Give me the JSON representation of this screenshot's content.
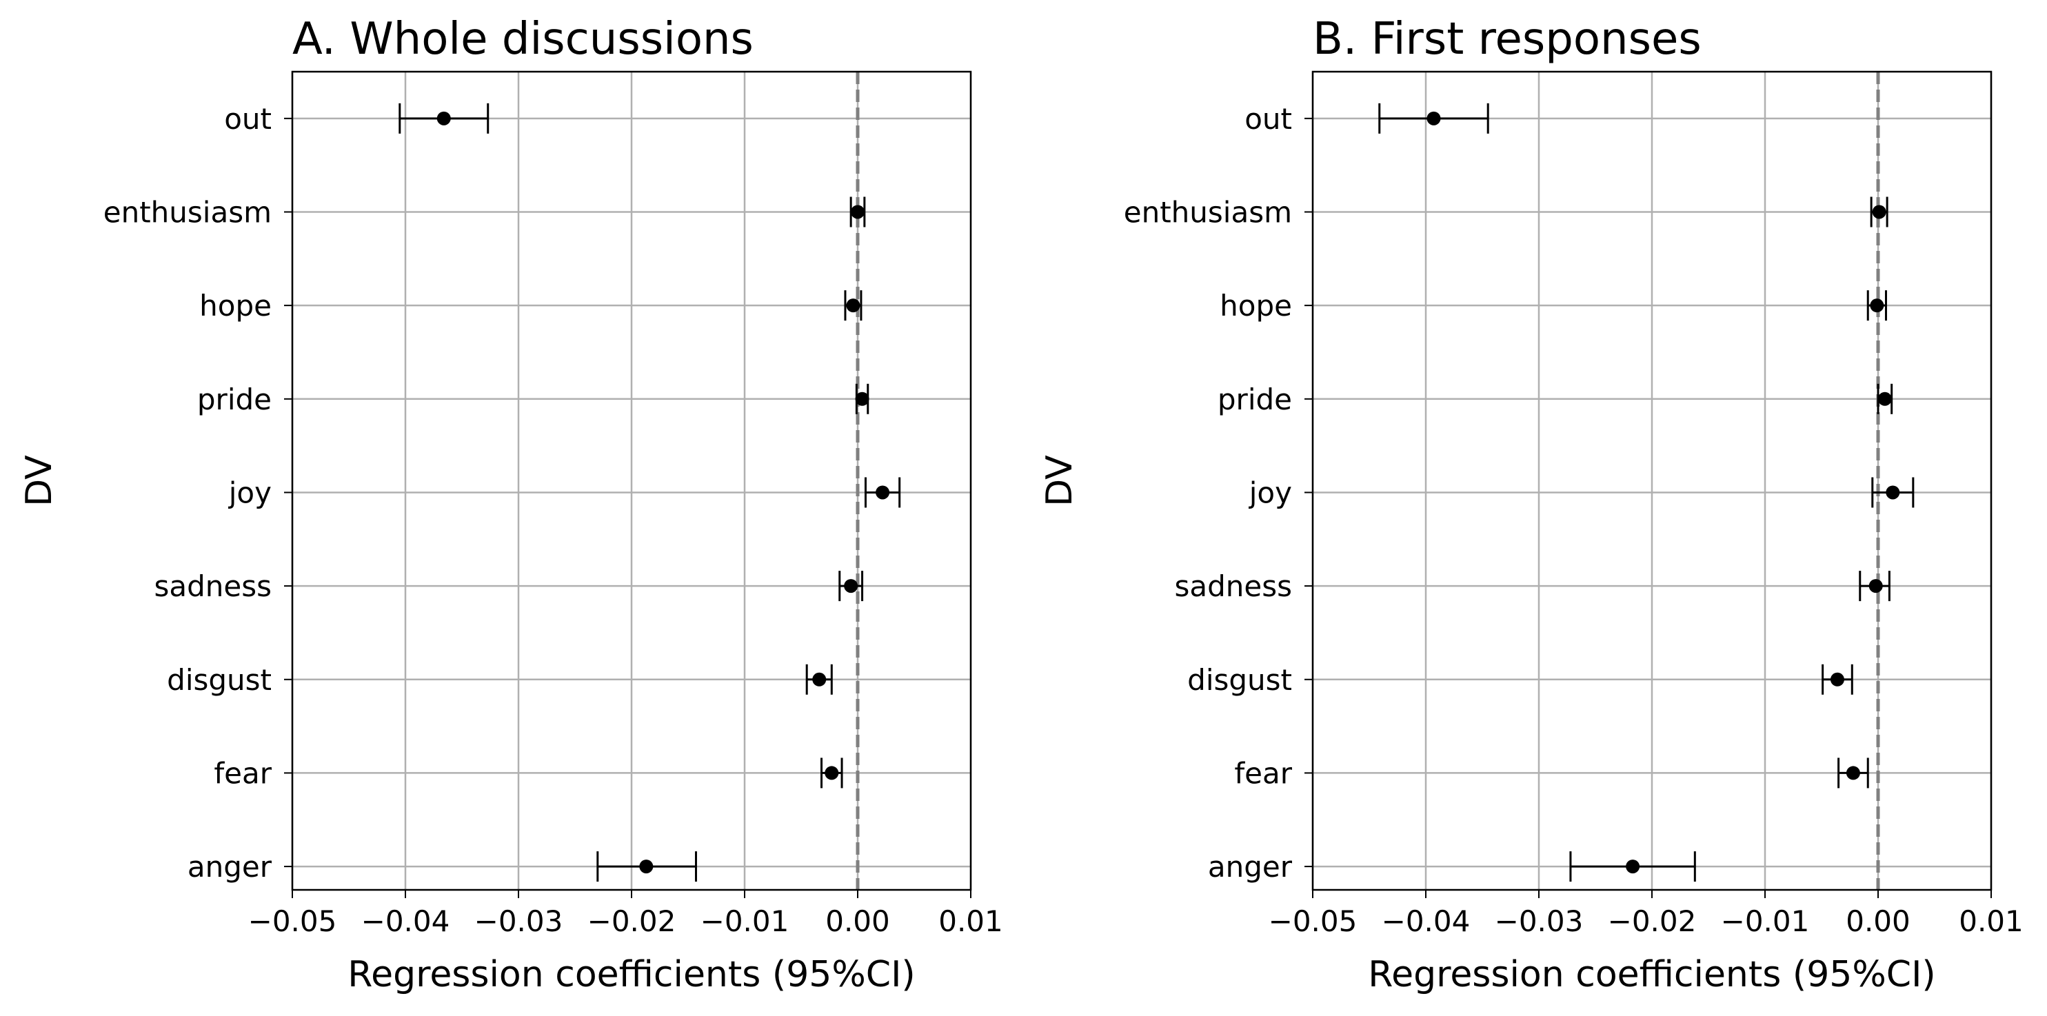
{
  "chart_data": [
    {
      "type": "scatter",
      "title": "A. Whole discussions",
      "xlabel": "Regression coefficients (95%CI)",
      "ylabel": "DV",
      "xlim": [
        -0.05,
        0.01
      ],
      "xticks": [
        "−0.05",
        "−0.04",
        "−0.03",
        "−0.02",
        "−0.01",
        "0.00",
        "0.01"
      ],
      "reference_line": 0,
      "grid": true,
      "categories": [
        "out",
        "enthusiasm",
        "hope",
        "pride",
        "joy",
        "sadness",
        "disgust",
        "fear",
        "anger"
      ],
      "values": [
        -0.0366,
        0.0,
        -0.0004,
        0.0004,
        0.0022,
        -0.0006,
        -0.0034,
        -0.0023,
        -0.0187
      ],
      "ci_low": [
        -0.0405,
        -0.0006,
        -0.0011,
        -0.0001,
        0.0007,
        -0.0016,
        -0.0045,
        -0.0032,
        -0.023
      ],
      "ci_high": [
        -0.0327,
        0.0006,
        0.0003,
        0.0009,
        0.0037,
        0.0004,
        -0.0023,
        -0.0014,
        -0.0143
      ]
    },
    {
      "type": "scatter",
      "title": "B. First responses",
      "xlabel": "Regression coefficients (95%CI)",
      "ylabel": "DV",
      "xlim": [
        -0.05,
        0.01
      ],
      "xticks": [
        "−0.05",
        "−0.04",
        "−0.03",
        "−0.02",
        "−0.01",
        "0.00",
        "0.01"
      ],
      "reference_line": 0,
      "grid": true,
      "categories": [
        "out",
        "enthusiasm",
        "hope",
        "pride",
        "joy",
        "sadness",
        "disgust",
        "fear",
        "anger"
      ],
      "values": [
        -0.0393,
        0.0001,
        -0.0001,
        0.0006,
        0.0013,
        -0.0002,
        -0.0036,
        -0.0022,
        -0.0217
      ],
      "ci_low": [
        -0.0441,
        -0.0006,
        -0.0009,
        0.0,
        -0.0005,
        -0.0016,
        -0.0049,
        -0.0035,
        -0.0272
      ],
      "ci_high": [
        -0.0345,
        0.0008,
        0.0007,
        0.0012,
        0.0031,
        0.001,
        -0.0023,
        -0.0009,
        -0.0162
      ]
    }
  ]
}
